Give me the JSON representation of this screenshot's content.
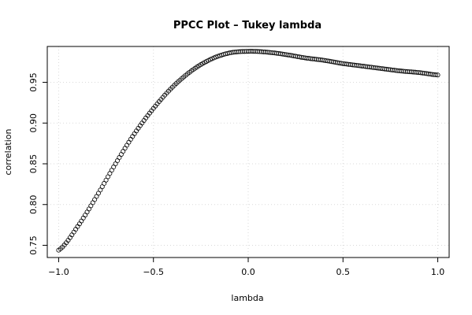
{
  "chart_data": {
    "type": "scatter",
    "title": "PPCC Plot – Tukey lambda",
    "xlabel": "lambda",
    "ylabel": "correlation",
    "xlim": [
      -1.06,
      1.06
    ],
    "ylim": [
      0.735,
      0.994
    ],
    "x_ticks": [
      -1.0,
      -0.5,
      0.0,
      0.5,
      1.0
    ],
    "x_tick_labels": [
      "−1.0",
      "−0.5",
      "0.0",
      "0.5",
      "1.0"
    ],
    "y_ticks": [
      0.75,
      0.8,
      0.85,
      0.9,
      0.95
    ],
    "y_tick_labels": [
      "0.75",
      "0.80",
      "0.85",
      "0.90",
      "0.95"
    ],
    "grid": true,
    "marker": "open-circle",
    "lambda_range": [
      -1.0,
      1.0
    ],
    "n_points": 201,
    "curve_knots": [
      [
        -1.0,
        0.744
      ],
      [
        -0.9,
        0.773
      ],
      [
        -0.8,
        0.81
      ],
      [
        -0.7,
        0.85
      ],
      [
        -0.6,
        0.887
      ],
      [
        -0.5,
        0.918
      ],
      [
        -0.4,
        0.944
      ],
      [
        -0.3,
        0.964
      ],
      [
        -0.2,
        0.978
      ],
      [
        -0.1,
        0.986
      ],
      [
        0.0,
        0.988
      ],
      [
        0.1,
        0.987
      ],
      [
        0.2,
        0.984
      ],
      [
        0.3,
        0.98
      ],
      [
        0.4,
        0.977
      ],
      [
        0.5,
        0.973
      ],
      [
        0.6,
        0.97
      ],
      [
        0.7,
        0.967
      ],
      [
        0.8,
        0.964
      ],
      [
        0.9,
        0.962
      ],
      [
        1.0,
        0.959
      ]
    ]
  }
}
